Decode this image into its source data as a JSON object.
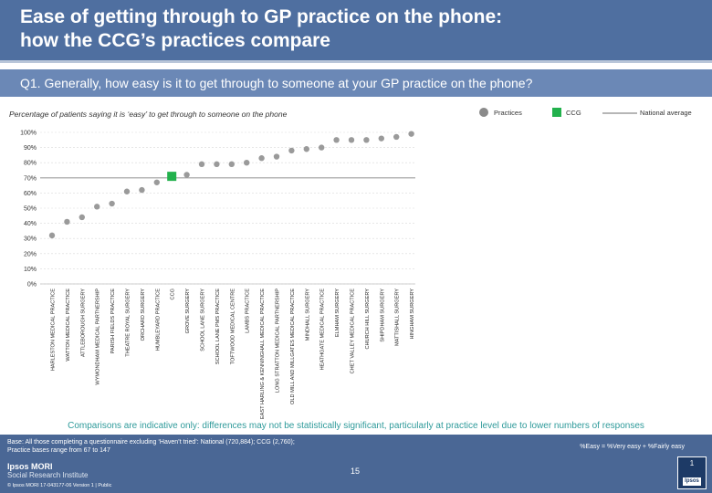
{
  "header": {
    "title_line1": "Ease of getting through to GP practice on the phone:",
    "title_line2": "how the CCG’s practices compare",
    "question": "Q1. Generally, how easy is it to get through to someone at your GP practice on the phone?"
  },
  "chart_subtitle": "Percentage of patients saying it is ‘easy’ to get through to someone on the phone",
  "legend": {
    "practices": "Practices",
    "ccg": "CCG",
    "national": "National average"
  },
  "colors": {
    "practice": "#9a9a9a",
    "ccg": "#22b14c",
    "national": "#9e9e9e",
    "header": "#4f6fa0",
    "footer_note": "#2e9a9a"
  },
  "chart_data": {
    "type": "scatter",
    "title": "Percentage of patients saying it is ‘easy’ to get through to someone on the phone",
    "ylim": [
      0,
      100
    ],
    "yticks": [
      "0%",
      "10%",
      "20%",
      "30%",
      "40%",
      "50%",
      "60%",
      "70%",
      "80%",
      "90%",
      "100%"
    ],
    "national_average": 70,
    "categories": [
      "HARLESTON MEDICAL PRACTICE",
      "WATTON MEDICAL PRACTICE",
      "ATTLEBOROUGH SURGERY",
      "WYMONDHAM MEDICAL PARTNERSHIP",
      "PARISH FIELDS PRACTICE",
      "THEATRE ROYAL SURGERY",
      "ORCHARD SURGERY",
      "HUMBLEYARD PRACTICE",
      "CCG",
      "GROVE SURGERY",
      "SCHOOL LANE SURGERY",
      "SCHOOL LANE PMS PRACTICE",
      "TOFTWOOD MEDICAL CENTRE",
      "LAMBS PRACTICE",
      "EAST HARLING & KENNINGHALL MEDICAL PRACTICE",
      "LONG STRATTON MEDICAL PARTNERSHIP",
      "OLD MILL AND MILLGATES MEDICAL PRACTICE",
      "MINDHALL SURGERY",
      "HEATHGATE MEDICAL PRACTICE",
      "ELMHAM SURGERY",
      "CHET VALLEY MEDICAL PRACTICE",
      "CHURCH HILL SURGERY",
      "SHIPDHAM SURGERY",
      "MATTISHALL SURGERY",
      "HINGHAM SURGERY"
    ],
    "values": [
      32,
      41,
      44,
      51,
      53,
      61,
      62,
      67,
      71,
      72,
      79,
      79,
      79,
      80,
      83,
      84,
      88,
      89,
      90,
      95,
      95,
      95,
      96,
      97,
      99
    ],
    "ccg_index": 8
  },
  "footer": {
    "note": "Comparisons are indicative only: differences may not be statistically significant, particularly at practice level due to lower numbers of responses",
    "base_line1": "Base: All those completing a questionnaire excluding ‘Haven’t tried’: National (720,884); CCG (2,760);",
    "base_line2": "Practice bases range from 67 to 147",
    "definition": "%Easy = %Very easy + %Fairly easy",
    "page_number": "15",
    "brand_name": "Ipsos MORI",
    "brand_sub": "Social Research Institute",
    "copyright": "© Ipsos MORI     17-043177-06 Version 1 | Public",
    "badge_number": "1",
    "badge_mark": "Ipsos"
  }
}
